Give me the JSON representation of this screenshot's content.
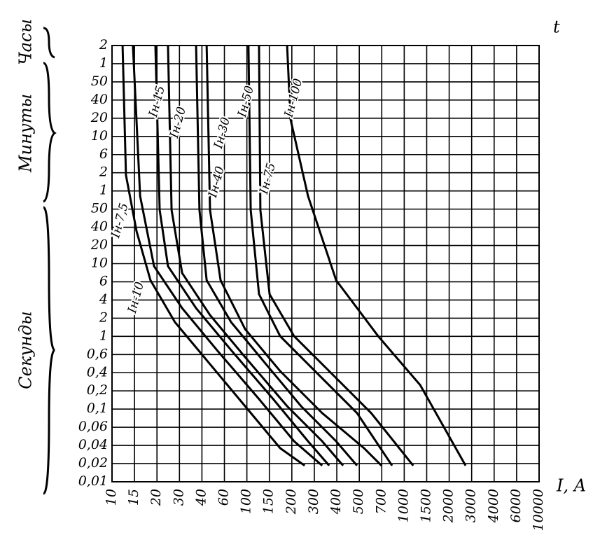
{
  "chart_data": {
    "type": "line",
    "y_label": "t",
    "x_label": "I, A",
    "y_groups": [
      "Часы",
      "Минуты",
      "Секунды"
    ],
    "xlim": [
      0,
      19
    ],
    "ylim": [
      0,
      24
    ],
    "xticks": [
      {
        "value": 0,
        "label": "10"
      },
      {
        "value": 1,
        "label": "15"
      },
      {
        "value": 2,
        "label": "20"
      },
      {
        "value": 3,
        "label": "30"
      },
      {
        "value": 4,
        "label": "40"
      },
      {
        "value": 5,
        "label": "60"
      },
      {
        "value": 6,
        "label": "100"
      },
      {
        "value": 7,
        "label": "150"
      },
      {
        "value": 8,
        "label": "200"
      },
      {
        "value": 9,
        "label": "300"
      },
      {
        "value": 10,
        "label": "400"
      },
      {
        "value": 11,
        "label": "500"
      },
      {
        "value": 12,
        "label": "700"
      },
      {
        "value": 13,
        "label": "1000"
      },
      {
        "value": 14,
        "label": "1500"
      },
      {
        "value": 15,
        "label": "2000"
      },
      {
        "value": 16,
        "label": "3000"
      },
      {
        "value": 17,
        "label": "4000"
      },
      {
        "value": 18,
        "label": "6000"
      },
      {
        "value": 19,
        "label": "10000"
      }
    ],
    "yticks": [
      {
        "value": 0,
        "label": "0,01"
      },
      {
        "value": 1,
        "label": "0,02"
      },
      {
        "value": 2,
        "label": "0,04"
      },
      {
        "value": 3,
        "label": "0,06"
      },
      {
        "value": 4,
        "label": "0,1"
      },
      {
        "value": 5,
        "label": "0,2"
      },
      {
        "value": 6,
        "label": "0,4"
      },
      {
        "value": 7,
        "label": "0,6"
      },
      {
        "value": 8,
        "label": "1"
      },
      {
        "value": 9,
        "label": "2"
      },
      {
        "value": 10,
        "label": "4"
      },
      {
        "value": 11,
        "label": "6"
      },
      {
        "value": 12,
        "label": "10"
      },
      {
        "value": 13,
        "label": "20"
      },
      {
        "value": 14,
        "label": "40"
      },
      {
        "value": 15,
        "label": "50"
      },
      {
        "value": 16,
        "label": "1"
      },
      {
        "value": 17,
        "label": "2"
      },
      {
        "value": 18,
        "label": "6"
      },
      {
        "value": 19,
        "label": "10"
      },
      {
        "value": 20,
        "label": "20"
      },
      {
        "value": 21,
        "label": "40"
      },
      {
        "value": 22,
        "label": "50"
      },
      {
        "value": 23,
        "label": "1"
      },
      {
        "value": 24,
        "label": "2"
      }
    ],
    "grid": true,
    "color": "#000000",
    "series": [
      {
        "name": "Iн-7,5",
        "x": [
          0.47,
          0.62,
          1.09,
          1.71,
          2.8,
          4.36,
          5.92,
          7.48,
          8.57
        ],
        "values": [
          24,
          16.87,
          13.79,
          11.09,
          8.78,
          6.47,
          4.16,
          1.85,
          0.89
        ]
      },
      {
        "name": "Iн-10",
        "x": [
          0.93,
          1.25,
          1.87,
          3.12,
          4.67,
          6.54,
          8.1,
          9.35
        ],
        "values": [
          24,
          15.72,
          11.86,
          9.55,
          7.24,
          4.55,
          2.23,
          0.89
        ]
      },
      {
        "name": "Iн-15",
        "x": [
          1.93,
          2.12,
          2.49,
          3.74,
          5.3,
          7.17,
          8.72,
          9.66
        ],
        "values": [
          24,
          14.95,
          11.86,
          9.55,
          7.24,
          4.55,
          2.23,
          0.89
        ]
      },
      {
        "name": "Iн-20",
        "x": [
          2.49,
          2.65,
          3.12,
          4.36,
          5.92,
          7.79,
          9.35,
          10.28
        ],
        "values": [
          24,
          14.95,
          11.48,
          9.17,
          6.86,
          4.16,
          2.23,
          0.89
        ]
      },
      {
        "name": "Iн-30",
        "x": [
          3.74,
          3.89,
          4.21,
          5.3,
          6.85,
          8.41,
          9.97,
          10.9
        ],
        "values": [
          24,
          14.95,
          11.09,
          8.78,
          6.47,
          4.16,
          2.23,
          0.89
        ]
      },
      {
        "name": "Iн-40",
        "x": [
          4.21,
          4.36,
          4.83,
          5.92,
          7.48,
          9.35,
          11.21,
          11.99
        ],
        "values": [
          24,
          14.95,
          11.09,
          8.4,
          6.09,
          3.78,
          1.85,
          0.89
        ]
      },
      {
        "name": "Iн-50",
        "x": [
          6.07,
          6.17,
          6.54,
          7.48,
          9.03,
          10.9,
          12.46
        ],
        "values": [
          24,
          14.95,
          10.32,
          8.01,
          6.09,
          3.78,
          0.89
        ]
      },
      {
        "name": "Iн-75",
        "x": [
          6.54,
          6.6,
          7.01,
          8.1,
          9.66,
          11.53,
          13.4
        ],
        "values": [
          24,
          14.95,
          10.32,
          8.01,
          6.09,
          3.78,
          0.89
        ]
      },
      {
        "name": "Iн-100",
        "x": [
          7.79,
          7.94,
          8.72,
          9.97,
          11.84,
          13.71,
          15.73
        ],
        "values": [
          24,
          19.95,
          15.72,
          11.09,
          8.01,
          5.32,
          0.89
        ]
      }
    ]
  }
}
